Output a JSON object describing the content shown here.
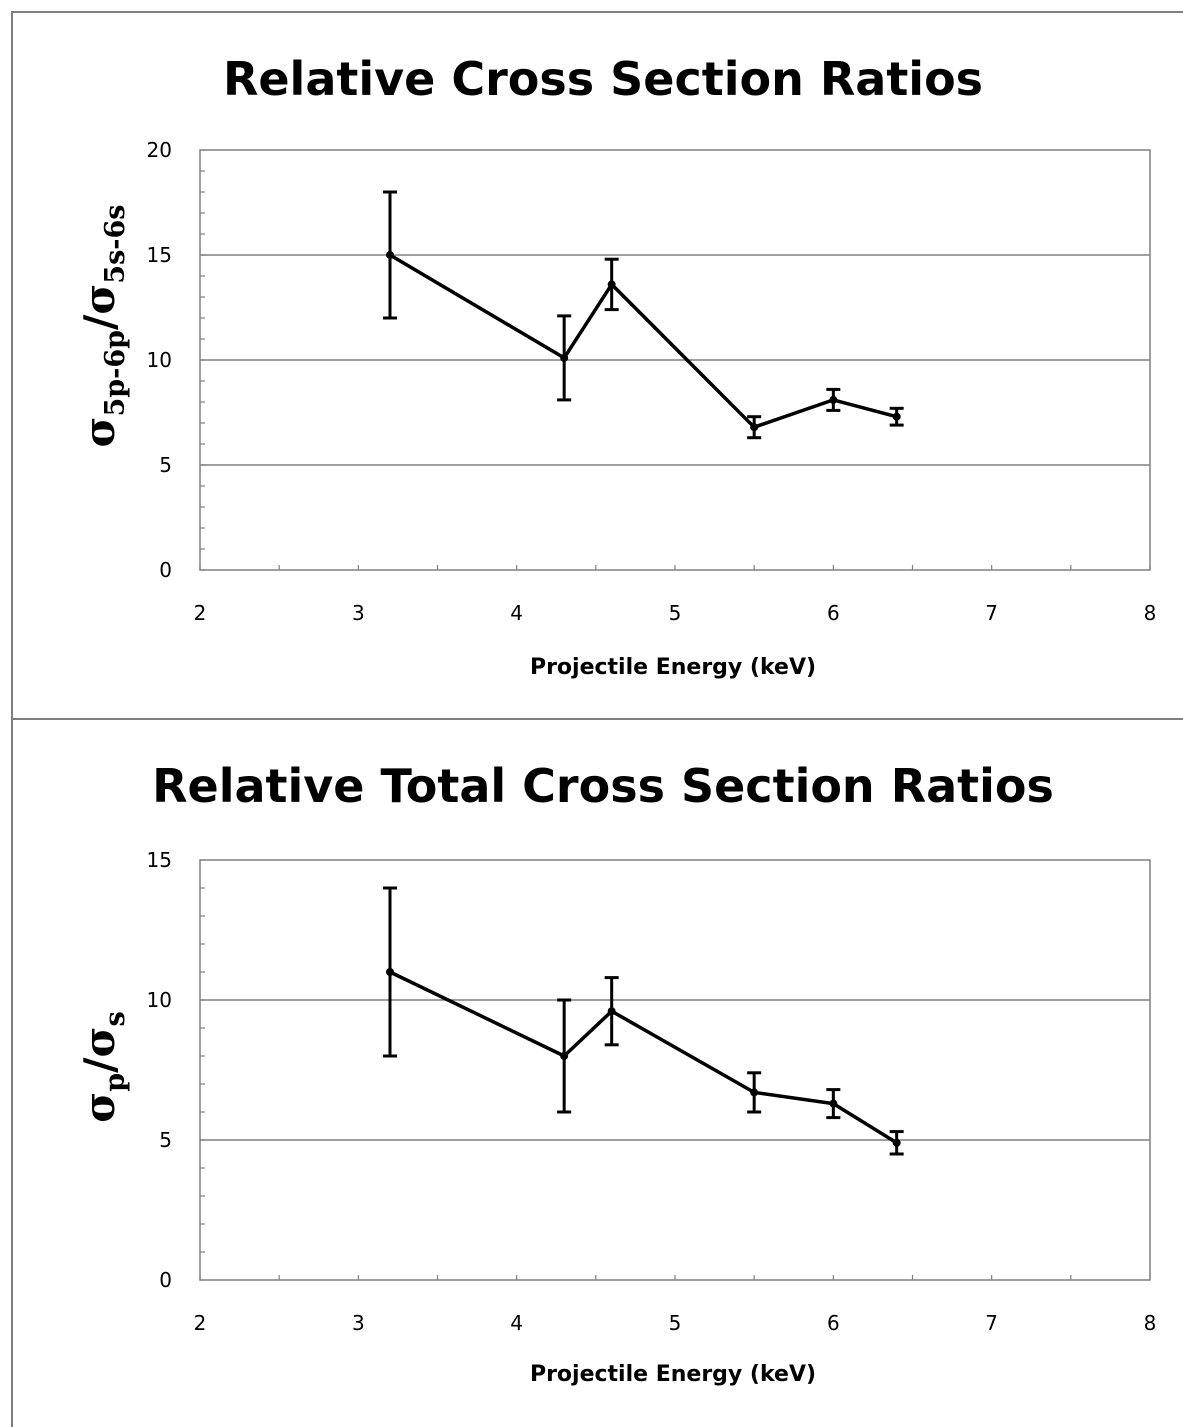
{
  "chart_data": [
    {
      "type": "line",
      "title": "Relative Cross Section Ratios",
      "xlabel": "Projectile Energy (keV)",
      "ylabel": {
        "sym1": "σ",
        "sub1": "5p-6p",
        "sep": "/",
        "sym2": "σ",
        "sub2": "5s-6s"
      },
      "xlim": [
        2,
        8
      ],
      "ylim": [
        0,
        20
      ],
      "x_ticks": [
        2,
        3,
        4,
        5,
        6,
        7,
        8
      ],
      "y_ticks": [
        0,
        5,
        10,
        15,
        20
      ],
      "grid": true,
      "series": [
        {
          "x": [
            3.2,
            4.3,
            4.6,
            5.5,
            6.0,
            6.4
          ],
          "y": [
            15.0,
            10.1,
            13.6,
            6.8,
            8.1,
            7.3
          ],
          "error": [
            3.0,
            2.0,
            1.2,
            0.5,
            0.5,
            0.4
          ]
        }
      ]
    },
    {
      "type": "line",
      "title": "Relative Total Cross Section Ratios",
      "xlabel": "Projectile Energy (keV)",
      "ylabel": {
        "sym1": "σ",
        "sub1": "p",
        "sep": "/",
        "sym2": "σ",
        "sub2": "s"
      },
      "xlim": [
        2,
        8
      ],
      "ylim": [
        0,
        15
      ],
      "x_ticks": [
        2,
        3,
        4,
        5,
        6,
        7,
        8
      ],
      "y_ticks": [
        0,
        5,
        10,
        15
      ],
      "grid": true,
      "series": [
        {
          "x": [
            3.2,
            4.3,
            4.6,
            5.5,
            6.0,
            6.4
          ],
          "y": [
            11.0,
            8.0,
            9.6,
            6.7,
            6.3,
            4.9
          ],
          "error": [
            3.0,
            2.0,
            1.2,
            0.7,
            0.5,
            0.4
          ]
        }
      ]
    }
  ],
  "colors": {
    "line": "#000000",
    "grid": "#808080",
    "frame": "#808080",
    "background": "#ffffff"
  }
}
